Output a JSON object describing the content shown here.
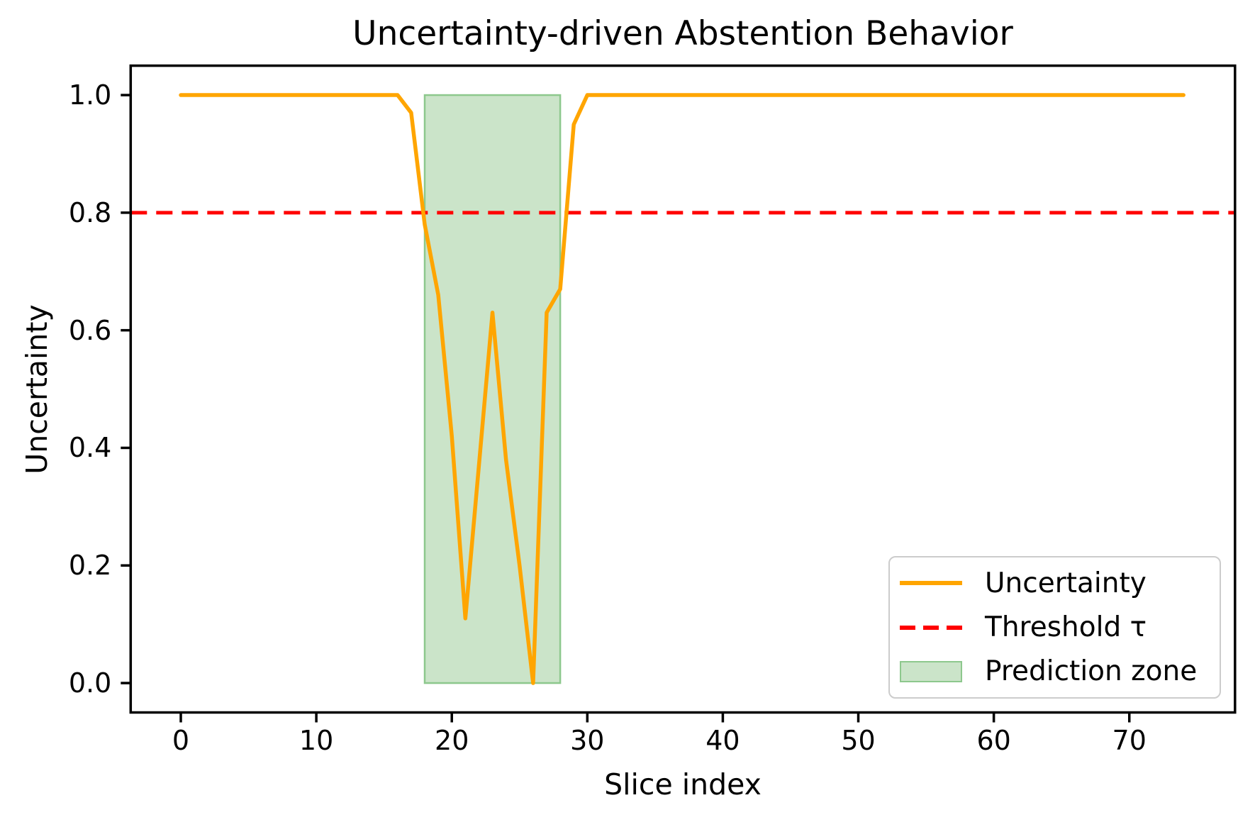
{
  "chart_data": {
    "type": "line",
    "title": "Uncertainty-driven Abstention Behavior",
    "xlabel": "Slice index",
    "ylabel": "Uncertainty",
    "xlim": [
      -3.7,
      77.8
    ],
    "ylim": [
      -0.05,
      1.05
    ],
    "x_ticks": [
      0,
      10,
      20,
      30,
      40,
      50,
      60,
      70
    ],
    "y_ticks": [
      {
        "value": 0.0,
        "label": "0.0"
      },
      {
        "value": 0.2,
        "label": "0.2"
      },
      {
        "value": 0.4,
        "label": "0.4"
      },
      {
        "value": 0.6,
        "label": "0.6"
      },
      {
        "value": 0.8,
        "label": "0.8"
      },
      {
        "value": 1.0,
        "label": "1.0"
      }
    ],
    "grid": false,
    "legend_position": "lower right",
    "series": [
      {
        "name": "Uncertainty",
        "color": "#FFA500",
        "x_is_index": true,
        "y": [
          1.0,
          1.0,
          1.0,
          1.0,
          1.0,
          1.0,
          1.0,
          1.0,
          1.0,
          1.0,
          1.0,
          1.0,
          1.0,
          1.0,
          1.0,
          1.0,
          1.0,
          0.97,
          0.78,
          0.66,
          0.42,
          0.11,
          0.37,
          0.63,
          0.38,
          0.2,
          0.0,
          0.63,
          0.67,
          0.95,
          1.0,
          1.0,
          1.0,
          1.0,
          1.0,
          1.0,
          1.0,
          1.0,
          1.0,
          1.0,
          1.0,
          1.0,
          1.0,
          1.0,
          1.0,
          1.0,
          1.0,
          1.0,
          1.0,
          1.0,
          1.0,
          1.0,
          1.0,
          1.0,
          1.0,
          1.0,
          1.0,
          1.0,
          1.0,
          1.0,
          1.0,
          1.0,
          1.0,
          1.0,
          1.0,
          1.0,
          1.0,
          1.0,
          1.0,
          1.0,
          1.0,
          1.0,
          1.0,
          1.0,
          1.0
        ]
      }
    ],
    "threshold": {
      "label": "Threshold τ",
      "value": 0.8,
      "color": "#FF0000",
      "style": "dashed"
    },
    "prediction_zone": {
      "label": "Prediction zone",
      "x_start": 18,
      "x_end": 28,
      "y_start": 0.0,
      "y_end": 1.0,
      "fill": "#cbe4c9",
      "border": "#8dc88d"
    },
    "legend": [
      {
        "label": "Uncertainty",
        "type": "line",
        "color": "#FFA500"
      },
      {
        "label": "Threshold τ",
        "type": "dashed-line",
        "color": "#FF0000"
      },
      {
        "label": "Prediction zone",
        "type": "patch",
        "fill": "#cbe4c9",
        "border": "#8dc88d"
      }
    ]
  }
}
